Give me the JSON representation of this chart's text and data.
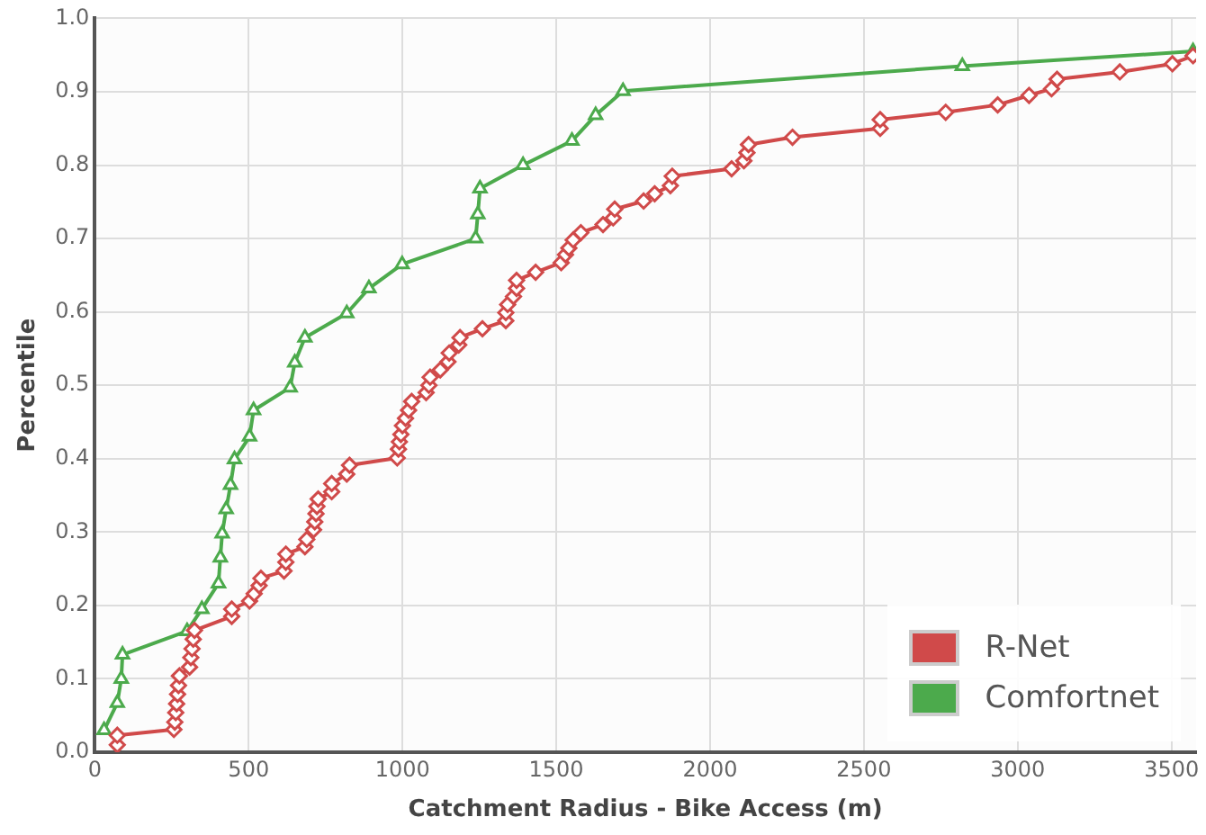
{
  "chart_data": {
    "type": "line",
    "xlabel": "Catchment Radius - Bike Access (m)",
    "ylabel": "Percentile",
    "xlim": [
      0,
      3580
    ],
    "xticks": [
      0,
      500,
      1000,
      1500,
      2000,
      2500,
      3000,
      3500
    ],
    "ylim": [
      0,
      1
    ],
    "yticks": [
      {
        "value": 0,
        "label": "0.0"
      },
      0.1,
      0.2,
      0.3,
      0.4,
      0.5,
      0.6,
      0.7,
      0.8,
      0.9,
      {
        "value": 1,
        "label": "1.0"
      }
    ],
    "grid": true,
    "legend": "bottom right",
    "line_style": "solid",
    "series": [
      {
        "name": "R-Net",
        "color": "#d04a4a",
        "marker": "diamond",
        "x": [
          73,
          73,
          257,
          260,
          263,
          266,
          269,
          272,
          275,
          308,
          312,
          316,
          320,
          324,
          445,
          445,
          503,
          518,
          534,
          540,
          615,
          621,
          621,
          683,
          689,
          711,
          715,
          719,
          722,
          726,
          770,
          770,
          819,
          828,
          983,
          987,
          990,
          995,
          1000,
          1010,
          1020,
          1030,
          1077,
          1086,
          1090,
          1123,
          1148,
          1152,
          1183,
          1187,
          1260,
          1336,
          1336,
          1342,
          1361,
          1371,
          1371,
          1433,
          1516,
          1530,
          1541,
          1555,
          1580,
          1652,
          1685,
          1690,
          1784,
          1820,
          1871,
          1877,
          2070,
          2110,
          2120,
          2125,
          2268,
          2553,
          2553,
          2766,
          2935,
          3037,
          3110,
          3128,
          3332,
          3503,
          3570
        ],
        "values": [
          0.01,
          0.023,
          0.031,
          0.041,
          0.054,
          0.066,
          0.079,
          0.091,
          0.104,
          0.116,
          0.129,
          0.141,
          0.154,
          0.166,
          0.185,
          0.195,
          0.206,
          0.216,
          0.227,
          0.237,
          0.247,
          0.259,
          0.27,
          0.28,
          0.29,
          0.303,
          0.314,
          0.325,
          0.335,
          0.345,
          0.355,
          0.366,
          0.379,
          0.391,
          0.401,
          0.413,
          0.423,
          0.433,
          0.445,
          0.455,
          0.466,
          0.478,
          0.49,
          0.5,
          0.511,
          0.521,
          0.532,
          0.544,
          0.555,
          0.565,
          0.577,
          0.588,
          0.599,
          0.61,
          0.621,
          0.632,
          0.643,
          0.654,
          0.667,
          0.678,
          0.687,
          0.698,
          0.708,
          0.719,
          0.728,
          0.74,
          0.751,
          0.761,
          0.772,
          0.785,
          0.795,
          0.806,
          0.817,
          0.828,
          0.838,
          0.85,
          0.862,
          0.872,
          0.882,
          0.895,
          0.904,
          0.917,
          0.927,
          0.938,
          0.949
        ]
      },
      {
        "name": "Comfortnet",
        "color": "#4caa4c",
        "marker": "triangle",
        "x": [
          30,
          73,
          86,
          90,
          300,
          348,
          402,
          408,
          414,
          427,
          441,
          454,
          503,
          516,
          635,
          650,
          683,
          819,
          891,
          999,
          1238,
          1245,
          1252,
          1392,
          1551,
          1628,
          1717,
          2820,
          3570
        ],
        "values": [
          0.03,
          0.067,
          0.1,
          0.133,
          0.165,
          0.195,
          0.23,
          0.265,
          0.298,
          0.331,
          0.364,
          0.399,
          0.43,
          0.466,
          0.497,
          0.531,
          0.565,
          0.598,
          0.632,
          0.665,
          0.7,
          0.733,
          0.768,
          0.8,
          0.833,
          0.868,
          0.901,
          0.935,
          0.955
        ]
      }
    ]
  }
}
